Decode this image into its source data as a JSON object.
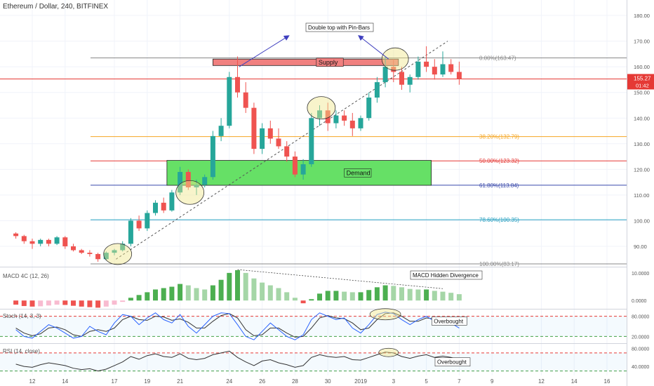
{
  "header": {
    "symbol_title": "Ethereum / Dollar, 240, BITFINEX"
  },
  "colors": {
    "up_candle": "#26a69a",
    "down_candle": "#ef5350",
    "supply_zone": "#f08080",
    "demand_zone": "#66e066",
    "price_line": "#e53935",
    "macd_up": "#4caf50",
    "macd_down": "#ef5350",
    "stoch_k": "#2962ff",
    "stoch_d": "#333333",
    "rsi_line": "#333333",
    "arrow": "#3f3fbf"
  },
  "chart_data": {
    "type": "candlestick",
    "title": "Ethereum / Dollar, 240, BITFINEX",
    "price_axis": {
      "min": 80,
      "max": 185,
      "ticks": [
        "180.00",
        "170.00",
        "160.00",
        "150.00",
        "140.00",
        "130.00",
        "120.00",
        "110.00",
        "100.00",
        "90.00"
      ],
      "tick_values": [
        180,
        170,
        160,
        150,
        140,
        130,
        120,
        110,
        100,
        90
      ]
    },
    "current_price": {
      "value": 155.27,
      "label": "155.27",
      "countdown": "01:42"
    },
    "x_axis": {
      "labels": [
        "12",
        "14",
        "17",
        "19",
        "21",
        "24",
        "26",
        "28",
        "30",
        "2019",
        "3",
        "5",
        "7",
        "9",
        "12",
        "14",
        "16"
      ],
      "label_days": [
        12,
        14,
        17,
        19,
        21,
        24,
        26,
        28,
        30,
        32,
        34,
        36,
        38,
        40,
        43,
        45,
        47
      ]
    },
    "fibonacci": [
      {
        "label": "0.00%(163.47)",
        "value": 163.47,
        "color": "#888888"
      },
      {
        "label": "38.20%(132.79)",
        "value": 132.79,
        "color": "#f5a623"
      },
      {
        "label": "50.00%(123.32)",
        "value": 123.32,
        "color": "#e53935"
      },
      {
        "label": "61.80%(113.84)",
        "value": 113.84,
        "color": "#3949ab"
      },
      {
        "label": "78.60%(100.35)",
        "value": 100.35,
        "color": "#26a0c0"
      },
      {
        "label": "100.00%(83.17)",
        "value": 83.17,
        "color": "#888888"
      }
    ],
    "zones": [
      {
        "label": "Supply",
        "top": 163.0,
        "bottom": 160.5,
        "start_day": 23.0,
        "end_day": 34.3
      },
      {
        "label": "Demand",
        "top": 123.5,
        "bottom": 113.8,
        "start_day": 20.2,
        "end_day": 36.3
      }
    ],
    "annotations": [
      {
        "text": "Double top with Pin-Bars",
        "day": 29.5,
        "price": 177
      }
    ],
    "candles_ohlc_daily": [
      [
        11.0,
        95,
        95.5,
        93,
        94
      ],
      [
        11.5,
        94,
        94.5,
        91,
        92
      ],
      [
        12.0,
        92,
        93,
        89,
        91
      ],
      [
        12.5,
        91,
        93,
        90,
        92.5
      ],
      [
        13.0,
        92.5,
        93,
        90,
        91
      ],
      [
        13.5,
        91,
        94,
        90.5,
        93.5
      ],
      [
        14.0,
        93.5,
        94,
        89,
        90
      ],
      [
        14.5,
        90,
        91,
        88,
        88.5
      ],
      [
        15.0,
        88.5,
        89,
        87,
        87.5
      ],
      [
        15.5,
        87.5,
        88.5,
        86,
        87
      ],
      [
        16.0,
        87,
        87.5,
        84,
        85
      ],
      [
        16.5,
        85,
        88,
        84.5,
        87.5
      ],
      [
        17.0,
        87.5,
        89,
        86.5,
        88.5
      ],
      [
        17.5,
        88.5,
        92,
        88,
        91
      ],
      [
        18.0,
        91,
        101,
        90,
        100
      ],
      [
        18.5,
        100,
        102,
        96,
        97
      ],
      [
        19.0,
        97,
        104,
        96,
        103
      ],
      [
        19.5,
        103,
        108,
        102,
        107
      ],
      [
        20.0,
        107,
        109,
        103,
        104
      ],
      [
        20.5,
        104,
        112,
        103.5,
        111
      ],
      [
        21.0,
        111,
        121,
        110,
        119
      ],
      [
        21.5,
        119,
        120,
        112,
        113
      ],
      [
        22.0,
        113,
        116,
        110,
        114
      ],
      [
        22.5,
        114,
        118,
        113,
        117
      ],
      [
        23.0,
        117,
        135,
        116,
        133
      ],
      [
        23.5,
        133,
        140,
        131,
        137
      ],
      [
        24.0,
        137,
        158,
        136,
        156
      ],
      [
        24.5,
        156,
        164,
        148,
        150
      ],
      [
        25.0,
        150,
        154,
        142,
        144
      ],
      [
        25.5,
        144,
        146,
        126,
        128
      ],
      [
        26.0,
        128,
        138,
        126,
        136
      ],
      [
        26.5,
        136,
        139,
        130,
        132
      ],
      [
        27.0,
        132,
        136,
        128,
        129
      ],
      [
        27.5,
        129,
        131,
        123,
        125
      ],
      [
        28.0,
        125,
        127,
        117,
        118
      ],
      [
        28.5,
        118,
        124,
        116,
        122
      ],
      [
        29.0,
        122,
        142,
        121,
        140
      ],
      [
        29.5,
        140,
        145,
        137,
        143
      ],
      [
        30.0,
        143,
        146,
        135,
        138
      ],
      [
        30.5,
        138,
        143,
        136,
        141
      ],
      [
        31.0,
        141,
        143,
        137,
        139
      ],
      [
        31.5,
        139,
        142,
        133,
        136
      ],
      [
        32.0,
        136,
        141,
        135,
        140
      ],
      [
        32.5,
        140,
        150,
        139,
        148
      ],
      [
        33.0,
        148,
        156,
        146,
        154
      ],
      [
        33.5,
        154,
        164,
        152,
        160
      ],
      [
        34.0,
        160,
        163,
        154,
        158
      ],
      [
        34.5,
        158,
        160,
        151,
        153
      ],
      [
        35.0,
        153,
        157,
        150,
        156
      ],
      [
        35.5,
        156,
        164,
        155,
        162
      ],
      [
        36.0,
        162,
        168,
        158,
        160
      ],
      [
        36.5,
        160,
        163,
        155,
        157
      ],
      [
        37.0,
        157,
        166,
        156,
        161
      ],
      [
        37.5,
        161,
        163,
        157,
        158
      ],
      [
        38.0,
        158,
        162,
        153,
        155.27
      ]
    ],
    "macd": {
      "title": "MACD 4C (12, 26)",
      "ticks": [
        "10.0000",
        "0.0000"
      ],
      "tick_values": [
        10,
        0
      ],
      "range": [
        -3,
        12
      ],
      "histogram_daily": [
        [
          11.0,
          -1.5
        ],
        [
          11.5,
          -2
        ],
        [
          12.0,
          -2.2
        ],
        [
          12.5,
          -2.1
        ],
        [
          13.0,
          -1.8
        ],
        [
          13.5,
          -1.5
        ],
        [
          14.0,
          -1.6
        ],
        [
          14.5,
          -1.9
        ],
        [
          15.0,
          -2.2
        ],
        [
          15.5,
          -2.4
        ],
        [
          16.0,
          -2.6
        ],
        [
          16.5,
          -2.2
        ],
        [
          17.0,
          -1.5
        ],
        [
          17.5,
          -0.5
        ],
        [
          18.0,
          1
        ],
        [
          18.5,
          2
        ],
        [
          19.0,
          3
        ],
        [
          19.5,
          4
        ],
        [
          20.0,
          4.5
        ],
        [
          20.5,
          5
        ],
        [
          21.0,
          6
        ],
        [
          21.5,
          5.5
        ],
        [
          22.0,
          4.5
        ],
        [
          22.5,
          4
        ],
        [
          23.0,
          5.5
        ],
        [
          23.5,
          7.5
        ],
        [
          24.0,
          10
        ],
        [
          24.5,
          11
        ],
        [
          25.0,
          10
        ],
        [
          25.5,
          8
        ],
        [
          26.0,
          6.5
        ],
        [
          26.5,
          5.5
        ],
        [
          27.0,
          4.5
        ],
        [
          27.5,
          3
        ],
        [
          28.0,
          1
        ],
        [
          28.5,
          -1
        ],
        [
          29.0,
          0.5
        ],
        [
          29.5,
          2.5
        ],
        [
          30.0,
          3.5
        ],
        [
          30.5,
          3.5
        ],
        [
          31.0,
          3.2
        ],
        [
          31.5,
          3
        ],
        [
          32.0,
          3
        ],
        [
          32.5,
          3.8
        ],
        [
          33.0,
          4.8
        ],
        [
          33.5,
          5.5
        ],
        [
          34.0,
          5.3
        ],
        [
          34.5,
          4.8
        ],
        [
          35.0,
          4.2
        ],
        [
          35.5,
          4
        ],
        [
          36.0,
          4
        ],
        [
          36.5,
          3.5
        ],
        [
          37.0,
          3.2
        ],
        [
          37.5,
          2.8
        ],
        [
          38.0,
          2.3
        ]
      ],
      "annotation": "MACD Hidden Divergence"
    },
    "stoch": {
      "title": "Stoch (14, 3, 3)",
      "ticks": [
        "80.0000",
        "20.0000"
      ],
      "tick_values": [
        80,
        20
      ],
      "range": [
        0,
        100
      ],
      "levels": [
        80,
        20
      ],
      "k_daily": [
        [
          11,
          40
        ],
        [
          11.5,
          20
        ],
        [
          12,
          15
        ],
        [
          12.5,
          35
        ],
        [
          13,
          55
        ],
        [
          13.5,
          45
        ],
        [
          14,
          30
        ],
        [
          14.5,
          15
        ],
        [
          15,
          20
        ],
        [
          15.5,
          50
        ],
        [
          16,
          35
        ],
        [
          16.5,
          25
        ],
        [
          17,
          60
        ],
        [
          17.5,
          85
        ],
        [
          18,
          80
        ],
        [
          18.5,
          55
        ],
        [
          19,
          75
        ],
        [
          19.5,
          90
        ],
        [
          20,
          70
        ],
        [
          20.5,
          60
        ],
        [
          21,
          85
        ],
        [
          21.5,
          50
        ],
        [
          22,
          30
        ],
        [
          22.5,
          55
        ],
        [
          23,
          80
        ],
        [
          23.5,
          90
        ],
        [
          24,
          88
        ],
        [
          24.5,
          55
        ],
        [
          25,
          20
        ],
        [
          25.5,
          10
        ],
        [
          26,
          35
        ],
        [
          26.5,
          60
        ],
        [
          27,
          40
        ],
        [
          27.5,
          20
        ],
        [
          28,
          10
        ],
        [
          28.5,
          25
        ],
        [
          29,
          70
        ],
        [
          29.5,
          90
        ],
        [
          30,
          80
        ],
        [
          30.5,
          70
        ],
        [
          31,
          75
        ],
        [
          31.5,
          45
        ],
        [
          32,
          30
        ],
        [
          32.5,
          55
        ],
        [
          33,
          85
        ],
        [
          33.5,
          92
        ],
        [
          34,
          88
        ],
        [
          34.5,
          70
        ],
        [
          35,
          55
        ],
        [
          35.5,
          70
        ],
        [
          36,
          80
        ],
        [
          36.5,
          65
        ],
        [
          37,
          75
        ],
        [
          37.5,
          60
        ],
        [
          38,
          45
        ]
      ],
      "d_daily": [
        [
          11,
          45
        ],
        [
          11.5,
          30
        ],
        [
          12,
          22
        ],
        [
          12.5,
          28
        ],
        [
          13,
          45
        ],
        [
          13.5,
          48
        ],
        [
          14,
          40
        ],
        [
          14.5,
          25
        ],
        [
          15,
          20
        ],
        [
          15.5,
          35
        ],
        [
          16,
          40
        ],
        [
          16.5,
          35
        ],
        [
          17,
          45
        ],
        [
          17.5,
          70
        ],
        [
          18,
          80
        ],
        [
          18.5,
          70
        ],
        [
          19,
          68
        ],
        [
          19.5,
          80
        ],
        [
          20,
          78
        ],
        [
          20.5,
          68
        ],
        [
          21,
          72
        ],
        [
          21.5,
          62
        ],
        [
          22,
          45
        ],
        [
          22.5,
          45
        ],
        [
          23,
          65
        ],
        [
          23.5,
          82
        ],
        [
          24,
          88
        ],
        [
          24.5,
          75
        ],
        [
          25,
          40
        ],
        [
          25.5,
          22
        ],
        [
          26,
          25
        ],
        [
          26.5,
          45
        ],
        [
          27,
          45
        ],
        [
          27.5,
          30
        ],
        [
          28,
          18
        ],
        [
          28.5,
          20
        ],
        [
          29,
          45
        ],
        [
          29.5,
          75
        ],
        [
          30,
          82
        ],
        [
          30.5,
          75
        ],
        [
          31,
          73
        ],
        [
          31.5,
          60
        ],
        [
          32,
          40
        ],
        [
          32.5,
          45
        ],
        [
          33,
          70
        ],
        [
          33.5,
          88
        ],
        [
          34,
          90
        ],
        [
          34.5,
          80
        ],
        [
          35,
          65
        ],
        [
          35.5,
          65
        ],
        [
          36,
          75
        ],
        [
          36.5,
          72
        ],
        [
          37,
          72
        ],
        [
          37.5,
          66
        ],
        [
          38,
          55
        ]
      ],
      "annotation": "Overbought"
    },
    "rsi": {
      "title": "RSI (14, close)",
      "ticks": [
        "80.0000",
        "40.0000"
      ],
      "tick_values": [
        80,
        40
      ],
      "range": [
        20,
        90
      ],
      "levels": [
        70,
        30
      ],
      "values_daily": [
        [
          11,
          45
        ],
        [
          11.5,
          40
        ],
        [
          12,
          38
        ],
        [
          12.5,
          44
        ],
        [
          13,
          48
        ],
        [
          13.5,
          45
        ],
        [
          14,
          42
        ],
        [
          14.5,
          36
        ],
        [
          15,
          33
        ],
        [
          15.5,
          35
        ],
        [
          16,
          30
        ],
        [
          16.5,
          34
        ],
        [
          17,
          42
        ],
        [
          17.5,
          50
        ],
        [
          18,
          62
        ],
        [
          18.5,
          56
        ],
        [
          19,
          64
        ],
        [
          19.5,
          68
        ],
        [
          20,
          62
        ],
        [
          20.5,
          60
        ],
        [
          21,
          68
        ],
        [
          21.5,
          58
        ],
        [
          22,
          55
        ],
        [
          22.5,
          58
        ],
        [
          23,
          66
        ],
        [
          23.5,
          70
        ],
        [
          24,
          74
        ],
        [
          24.5,
          60
        ],
        [
          25,
          50
        ],
        [
          25.5,
          42
        ],
        [
          26,
          52
        ],
        [
          26.5,
          55
        ],
        [
          27,
          48
        ],
        [
          27.5,
          44
        ],
        [
          28,
          38
        ],
        [
          28.5,
          42
        ],
        [
          29,
          60
        ],
        [
          29.5,
          66
        ],
        [
          30,
          62
        ],
        [
          30.5,
          60
        ],
        [
          31,
          62
        ],
        [
          31.5,
          55
        ],
        [
          32,
          54
        ],
        [
          32.5,
          60
        ],
        [
          33,
          66
        ],
        [
          33.5,
          72
        ],
        [
          34,
          70
        ],
        [
          34.5,
          62
        ],
        [
          35,
          58
        ],
        [
          35.5,
          63
        ],
        [
          36,
          66
        ],
        [
          36.5,
          60
        ],
        [
          37,
          63
        ],
        [
          37.5,
          60
        ],
        [
          38,
          55
        ]
      ],
      "annotation": "Overbought"
    }
  }
}
